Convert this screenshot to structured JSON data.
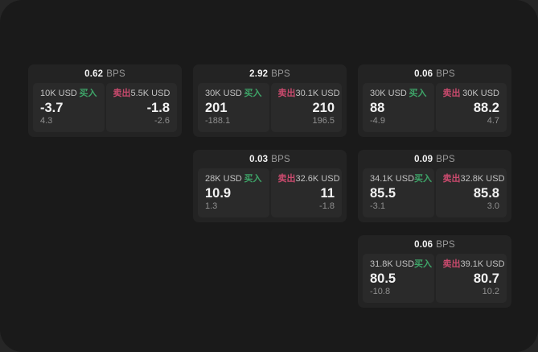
{
  "labels": {
    "bps_suffix": "BPS",
    "buy": "买入",
    "sell": "卖出"
  },
  "colors": {
    "buy": "#3ea468",
    "sell": "#c94a6d",
    "surface": "#1a1a1a",
    "card": "#232323",
    "panel": "#2a2a2a"
  },
  "cards": [
    {
      "row": 1,
      "col": 1,
      "bps": "0.62",
      "buy": {
        "amount": "10K USD",
        "value": "-3.7",
        "sub": "4.3"
      },
      "sell": {
        "amount": "5.5K USD",
        "value": "-1.8",
        "sub": "-2.6"
      }
    },
    {
      "row": 1,
      "col": 2,
      "bps": "2.92",
      "buy": {
        "amount": "30K USD",
        "value": "201",
        "sub": "-188.1"
      },
      "sell": {
        "amount": "30.1K USD",
        "value": "210",
        "sub": "196.5"
      }
    },
    {
      "row": 1,
      "col": 3,
      "bps": "0.06",
      "buy": {
        "amount": "30K USD",
        "value": "88",
        "sub": "-4.9"
      },
      "sell": {
        "amount": "30K USD",
        "value": "88.2",
        "sub": "4.7"
      }
    },
    {
      "row": 2,
      "col": 2,
      "bps": "0.03",
      "buy": {
        "amount": "28K USD",
        "value": "10.9",
        "sub": "1.3"
      },
      "sell": {
        "amount": "32.6K USD",
        "value": "11",
        "sub": "-1.8"
      }
    },
    {
      "row": 2,
      "col": 3,
      "bps": "0.09",
      "buy": {
        "amount": "34.1K USD",
        "value": "85.5",
        "sub": "-3.1"
      },
      "sell": {
        "amount": "32.8K USD",
        "value": "85.8",
        "sub": "3.0"
      }
    },
    {
      "row": 3,
      "col": 3,
      "bps": "0.06",
      "buy": {
        "amount": "31.8K USD",
        "value": "80.5",
        "sub": "-10.8"
      },
      "sell": {
        "amount": "39.1K USD",
        "value": "80.7",
        "sub": "10.2"
      }
    }
  ]
}
